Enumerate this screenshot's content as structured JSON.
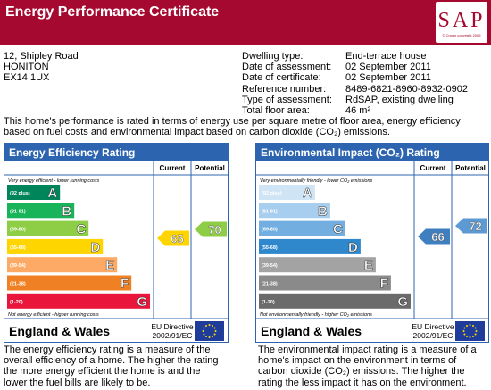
{
  "header": {
    "title": "Energy Performance Certificate",
    "logo": "SAP",
    "logo_note": "© Crown copyright 2009"
  },
  "address": [
    "12, Shipley Road",
    "HONITON",
    "EX14 1UX"
  ],
  "details": [
    [
      "Dwelling type:",
      "End-terrace house"
    ],
    [
      "Date of assessment:",
      "02 September 2011"
    ],
    [
      "Date of certificate:",
      "02 September 2011"
    ],
    [
      "Reference number:",
      "8489-6821-8960-8932-0902"
    ],
    [
      "Type of assessment:",
      "RdSAP, existing dwelling"
    ],
    [
      "Total floor area:",
      "46 m²"
    ]
  ],
  "intro": "This home's performance is rated in terms of energy use per square metre of floor area, energy efficiency based on fuel costs and environmental impact based on carbon dioxide (CO₂) emissions.",
  "panels": [
    {
      "title": "Energy Efficiency Rating",
      "columns": [
        "Current",
        "Potential"
      ],
      "top_note": "Very energy efficient - lower running costs",
      "bottom_note": "Not energy efficient - higher running costs",
      "bands": [
        {
          "range": "(92 plus)",
          "letter": "A",
          "color": "#00855a"
        },
        {
          "range": "(81-91)",
          "letter": "B",
          "color": "#19b459"
        },
        {
          "range": "(69-80)",
          "letter": "C",
          "color": "#8dce46"
        },
        {
          "range": "(55-68)",
          "letter": "D",
          "color": "#ffd500"
        },
        {
          "range": "(39-54)",
          "letter": "E",
          "color": "#fcaa65"
        },
        {
          "range": "(21-38)",
          "letter": "F",
          "color": "#ef8023"
        },
        {
          "range": "(1-20)",
          "letter": "G",
          "color": "#e9153b"
        }
      ],
      "current": 65,
      "potential": 70,
      "current_color": "#ffd500",
      "potential_color": "#8dce46",
      "footer": "England & Wales",
      "directive": [
        "EU Directive",
        "2002/91/EC"
      ],
      "description": "The energy efficiency rating is a measure of the overall efficiency of a home. The higher the rating the more energy efficient the home is and the lower the fuel bills are likely to be."
    },
    {
      "title": "Environmental Impact (CO₂) Rating",
      "columns": [
        "Current",
        "Potential"
      ],
      "top_note": "Very environmentally friendly - lower CO₂ emissions",
      "bottom_note": "Not environmentally friendly - higher CO₂ emissions",
      "bands": [
        {
          "range": "(92 plus)",
          "letter": "A",
          "color": "#cfe5f6"
        },
        {
          "range": "(81-91)",
          "letter": "B",
          "color": "#a7cdef"
        },
        {
          "range": "(69-80)",
          "letter": "C",
          "color": "#72afe0"
        },
        {
          "range": "(55-68)",
          "letter": "D",
          "color": "#2f87cc"
        },
        {
          "range": "(39-54)",
          "letter": "E",
          "color": "#a3a3a3"
        },
        {
          "range": "(21-38)",
          "letter": "F",
          "color": "#8a8a8a"
        },
        {
          "range": "(1-20)",
          "letter": "G",
          "color": "#6b6b6b"
        }
      ],
      "current": 66,
      "potential": 72,
      "current_color": "#3f7fc0",
      "potential_color": "#5d9ad3",
      "footer": "England & Wales",
      "directive": [
        "EU Directive",
        "2002/91/EC"
      ],
      "description": "The environmental impact rating is a measure of a home's impact on the environment in terms of carbon dioxide (CO₂) emissions. The higher the rating the less impact it has on the environment."
    }
  ]
}
